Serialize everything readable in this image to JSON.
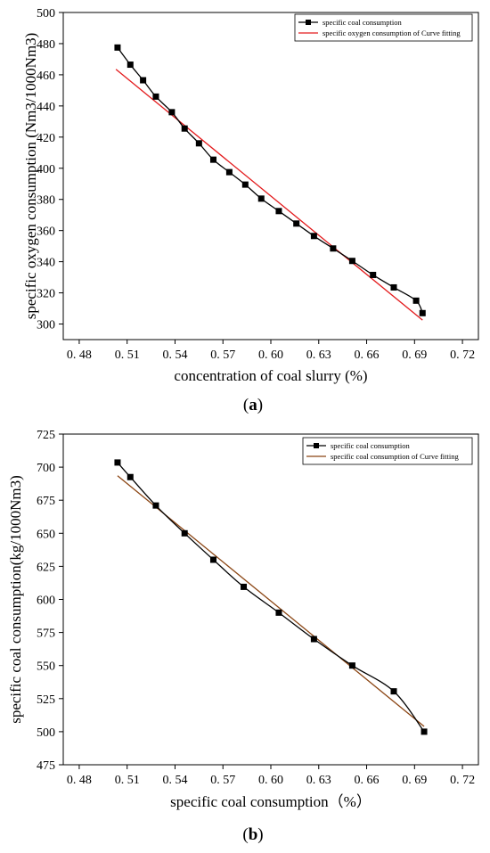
{
  "chart_data": [
    {
      "type": "line",
      "caption": "(a)",
      "caption_letter": "a",
      "xlabel": "concentration of coal slurry (%)",
      "ylabel": "specific oxygen consumption (Nm3/1000Nm3)",
      "xlim": [
        0.47,
        0.73
      ],
      "ylim": [
        290,
        500
      ],
      "xticks": [
        0.48,
        0.51,
        0.54,
        0.57,
        0.6,
        0.63,
        0.66,
        0.69,
        0.72
      ],
      "xtick_labels": [
        "0. 48",
        "0. 51",
        "0. 54",
        "0. 57",
        "0. 60",
        "0. 63",
        "0. 66",
        "0. 69",
        "0. 72"
      ],
      "yticks": [
        300,
        320,
        340,
        360,
        380,
        400,
        420,
        440,
        460,
        480,
        500
      ],
      "ytick_labels": [
        "300",
        "320",
        "340",
        "360",
        "380",
        "400",
        "420",
        "440",
        "460",
        "480",
        "500"
      ],
      "legend_position": "top-right",
      "series": [
        {
          "name": "specific coal consumption",
          "color": "#000000",
          "marker": "square",
          "x": [
            0.504,
            0.512,
            0.52,
            0.528,
            0.538,
            0.546,
            0.555,
            0.564,
            0.574,
            0.584,
            0.594,
            0.605,
            0.616,
            0.627,
            0.639,
            0.651,
            0.664,
            0.677,
            0.691,
            0.695
          ],
          "y": [
            477.5,
            466.5,
            456.5,
            446,
            436,
            425.5,
            416,
            405.5,
            397.5,
            389.5,
            380.5,
            372.5,
            364.5,
            356.5,
            348.5,
            340.5,
            331.5,
            323.5,
            315,
            307
          ]
        },
        {
          "name": "specific oxygen consumption of Curve fitting",
          "color": "#e31a1c",
          "marker": "none",
          "x": [
            0.503,
            0.695
          ],
          "y": [
            463.5,
            302.5
          ]
        }
      ]
    },
    {
      "type": "line",
      "caption": "(b)",
      "caption_letter": "b",
      "xlabel": "specific coal consumption（%）",
      "ylabel": "specific coal consumption(kg/1000Nm3)",
      "xlim": [
        0.47,
        0.73
      ],
      "ylim": [
        475,
        725
      ],
      "xticks": [
        0.48,
        0.51,
        0.54,
        0.57,
        0.6,
        0.63,
        0.66,
        0.69,
        0.72
      ],
      "xtick_labels": [
        "0. 48",
        "0. 51",
        "0. 54",
        "0. 57",
        "0. 60",
        "0. 63",
        "0. 66",
        "0. 69",
        "0. 72"
      ],
      "yticks": [
        475,
        500,
        525,
        550,
        575,
        600,
        625,
        650,
        675,
        700,
        725
      ],
      "ytick_labels": [
        "475",
        "500",
        "525",
        "550",
        "575",
        "600",
        "625",
        "650",
        "675",
        "700",
        "725"
      ],
      "legend_position": "top-right",
      "series": [
        {
          "name": "specific coal consumption",
          "color": "#000000",
          "marker": "square",
          "x": [
            0.504,
            0.512,
            0.528,
            0.546,
            0.564,
            0.583,
            0.605,
            0.627,
            0.651,
            0.677,
            0.696
          ],
          "y": [
            703.5,
            692.5,
            671,
            650,
            630,
            609.5,
            590,
            570,
            550,
            530.5,
            500
          ]
        },
        {
          "name": "specific coal consumption of Curve fitting",
          "color": "#8b4513",
          "marker": "none",
          "x": [
            0.504,
            0.696
          ],
          "y": [
            693.5,
            504
          ]
        }
      ]
    }
  ]
}
